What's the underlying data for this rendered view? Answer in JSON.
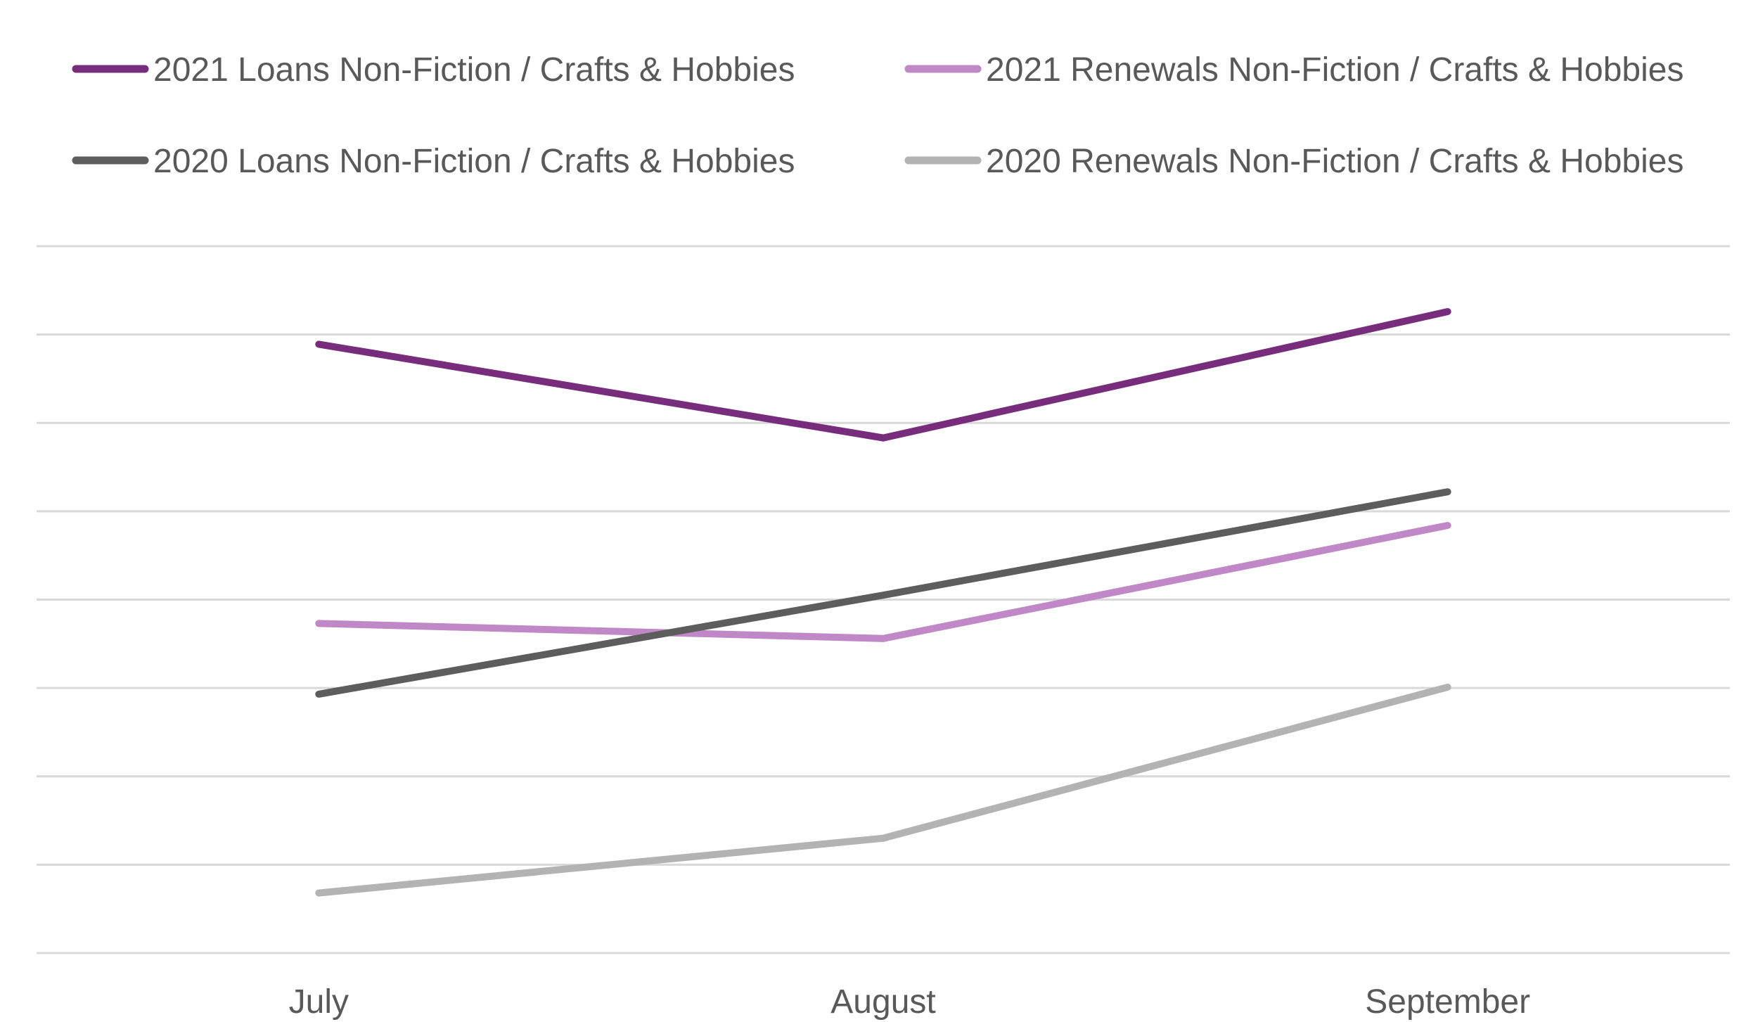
{
  "chart_data": {
    "type": "line",
    "categories": [
      "July",
      "August",
      "September"
    ],
    "y_gridline_count": 9,
    "y_tick_labels_visible": false,
    "grid": true,
    "legend_placement": "top",
    "series": [
      {
        "name": "2021 Loans Non-Fiction / Crafts & Hobbies",
        "color": "#772c7c",
        "values": [
          6.89,
          5.83,
          7.26
        ]
      },
      {
        "name": "2021 Renewals Non-Fiction / Crafts & Hobbies",
        "color": "#c088c6",
        "values": [
          3.73,
          3.56,
          4.84
        ]
      },
      {
        "name": "2020 Loans Non-Fiction / Crafts & Hobbies",
        "color": "#5d5d5d",
        "values": [
          2.93,
          4.05,
          5.22
        ]
      },
      {
        "name": "2020 Renewals Non-Fiction / Crafts & Hobbies",
        "color": "#b3b3b3",
        "values": [
          0.68,
          1.3,
          3.01
        ]
      }
    ]
  }
}
